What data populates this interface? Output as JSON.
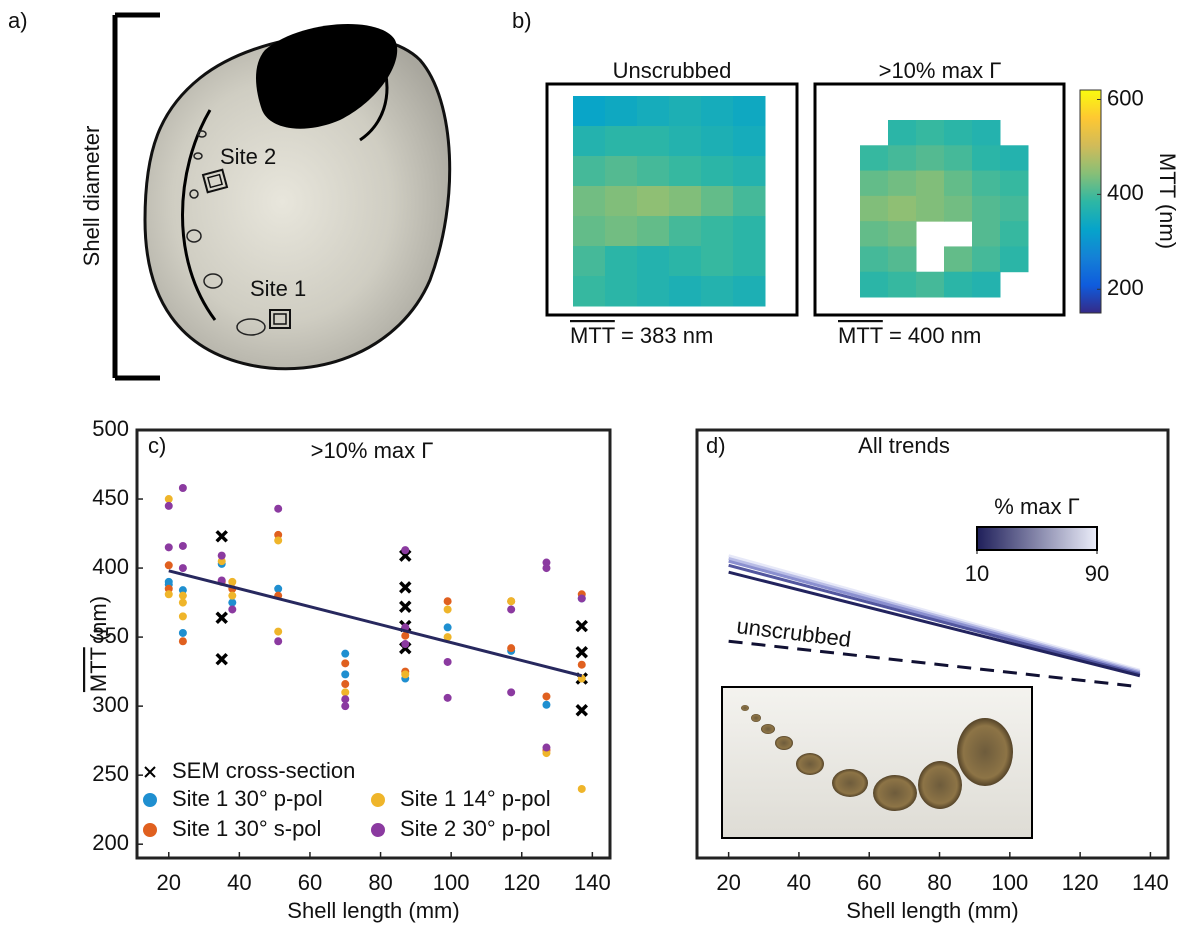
{
  "panel_labels": [
    "a)",
    "b)",
    "c)",
    "d)"
  ],
  "panel_a": {
    "ylabel": "Shell diameter",
    "sites": [
      "Site 2",
      "Site 1"
    ]
  },
  "chart_data": [
    {
      "type": "heatmap",
      "maps": [
        {
          "title": "Unscrubbed",
          "caption_symbol": "MTT",
          "caption_value": "= 383 nm",
          "values": [
            [
              330,
              340,
              350,
              360,
              350,
              340
            ],
            [
              370,
              380,
              380,
              370,
              360,
              350
            ],
            [
              400,
              410,
              400,
              390,
              380,
              370
            ],
            [
              430,
              440,
              450,
              440,
              420,
              400
            ],
            [
              420,
              430,
              420,
              400,
              390,
              380
            ],
            [
              400,
              380,
              370,
              380,
              390,
              380
            ],
            [
              390,
              380,
              370,
              360,
              370,
              360
            ]
          ]
        },
        {
          "title": ">10% max Γ",
          "caption_symbol": "MTT",
          "caption_value": "= 400 nm",
          "values": [
            [
              null,
              380,
              390,
              380,
              370,
              null
            ],
            [
              390,
              400,
              410,
              400,
              380,
              370
            ],
            [
              420,
              430,
              440,
              420,
              400,
              390
            ],
            [
              440,
              450,
              440,
              430,
              410,
              400
            ],
            [
              420,
              430,
              null,
              null,
              410,
              390
            ],
            [
              400,
              410,
              null,
              420,
              400,
              380
            ],
            [
              380,
              390,
              400,
              380,
              370,
              null
            ]
          ]
        }
      ],
      "clabel": "MTT (nm)",
      "clim": [
        150,
        620
      ],
      "cticks": [
        200,
        400,
        600
      ],
      "colormap": [
        "#352a87",
        "#0f5cdd",
        "#1481d6",
        "#06a4ca",
        "#2eb7a4",
        "#87bf77",
        "#d1bb59",
        "#fec832",
        "#f9fb0e"
      ]
    },
    {
      "type": "scatter",
      "title": ">10% max Γ",
      "xlabel": "Shell length (mm)",
      "ylabel_symbol": "MTT",
      "ylabel_unit": "(nm)",
      "xlim": [
        11,
        145
      ],
      "ylim": [
        190,
        500
      ],
      "xticks": [
        20,
        40,
        60,
        80,
        100,
        120,
        140
      ],
      "yticks": [
        200,
        250,
        300,
        350,
        400,
        450,
        500
      ],
      "legend": "lower left",
      "series": [
        {
          "name": "SEM cross-section",
          "color": "#000000",
          "marker": "x",
          "x": [
            35,
            35,
            35,
            87,
            87,
            87,
            87,
            87,
            137,
            137,
            137,
            137
          ],
          "values": [
            423,
            364,
            334,
            409,
            386,
            372,
            358,
            342,
            358,
            339,
            320,
            297
          ]
        },
        {
          "name": "Site 1 30° p-pol",
          "color": "#1f8fd0",
          "marker": "o",
          "x": [
            20,
            20,
            24,
            24,
            35,
            38,
            51,
            70,
            70,
            87,
            99,
            117,
            127,
            137
          ],
          "values": [
            390,
            388,
            384,
            353,
            403,
            375,
            385,
            338,
            323,
            320,
            357,
            340,
            301,
            378
          ]
        },
        {
          "name": "Site 1 30° s-pol",
          "color": "#e0601f",
          "marker": "o",
          "x": [
            20,
            20,
            24,
            35,
            38,
            51,
            51,
            70,
            70,
            87,
            87,
            99,
            117,
            117,
            127,
            127,
            137,
            137
          ],
          "values": [
            402,
            385,
            347,
            390,
            385,
            424,
            380,
            331,
            316,
            351,
            325,
            376,
            376,
            342,
            307,
            268,
            381,
            330
          ]
        },
        {
          "name": "Site 1 14° p-pol",
          "color": "#efb52a",
          "marker": "o",
          "x": [
            20,
            20,
            24,
            24,
            24,
            35,
            38,
            38,
            51,
            51,
            70,
            87,
            99,
            99,
            117,
            127,
            137,
            137
          ],
          "values": [
            450,
            381,
            375,
            365,
            380,
            405,
            390,
            380,
            420,
            354,
            310,
            323,
            370,
            350,
            376,
            266,
            240,
            320
          ]
        },
        {
          "name": "Site 2 30° p-pol",
          "color": "#8b3aa0",
          "marker": "o",
          "x": [
            20,
            20,
            24,
            24,
            24,
            35,
            35,
            38,
            51,
            51,
            70,
            70,
            87,
            87,
            87,
            99,
            99,
            117,
            117,
            127,
            127,
            127,
            137
          ],
          "values": [
            445,
            415,
            458,
            416,
            400,
            409,
            391,
            370,
            443,
            347,
            305,
            300,
            413,
            357,
            345,
            332,
            306,
            370,
            310,
            404,
            400,
            270,
            378
          ]
        }
      ],
      "trend": {
        "color": "#27285e",
        "x": [
          20,
          137
        ],
        "values": [
          398,
          322
        ]
      }
    },
    {
      "type": "line",
      "title": "All trends",
      "xlabel": "Shell length (mm)",
      "xlim": [
        11,
        145
      ],
      "ylim": [
        190,
        500
      ],
      "xticks": [
        20,
        40,
        60,
        80,
        100,
        120,
        140
      ],
      "series": [
        {
          "color": "#e6e8f8",
          "x": [
            20,
            137
          ],
          "values": [
            409,
            326
          ]
        },
        {
          "color": "#b9bde6",
          "x": [
            20,
            137
          ],
          "values": [
            407,
            325
          ]
        },
        {
          "color": "#8a8fcf",
          "x": [
            20,
            137
          ],
          "values": [
            405,
            324
          ]
        },
        {
          "color": "#52569f",
          "x": [
            20,
            137
          ],
          "values": [
            402,
            323
          ]
        },
        {
          "color": "#22235e",
          "x": [
            20,
            137
          ],
          "values": [
            397,
            322
          ]
        }
      ],
      "dashed": {
        "label": "unscrubbed",
        "color": "#111133",
        "x": [
          20,
          137
        ],
        "values": [
          347,
          314
        ]
      },
      "cbar": {
        "title": "% max Γ",
        "lim": [
          10,
          90
        ],
        "ticks": [
          10,
          90
        ],
        "colors": [
          "#1f1f5a",
          "#eceefa"
        ]
      }
    }
  ]
}
